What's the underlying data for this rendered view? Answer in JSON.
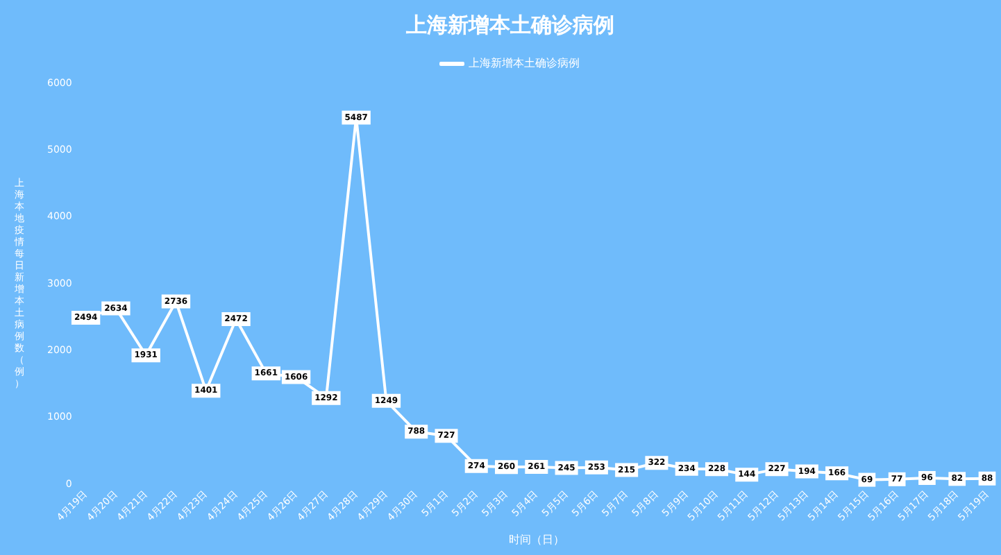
{
  "chart_data": {
    "type": "line",
    "title": "上海新增本土确诊病例",
    "xlabel": "时间（日）",
    "ylabel": "上海本地疫情每日新增本土病例数（例）",
    "categories": [
      "4月19日",
      "4月20日",
      "4月21日",
      "4月22日",
      "4月23日",
      "4月24日",
      "4月25日",
      "4月26日",
      "4月27日",
      "4月28日",
      "4月29日",
      "4月30日",
      "5月1日",
      "5月2日",
      "5月3日",
      "5月4日",
      "5月5日",
      "5月6日",
      "5月7日",
      "5月8日",
      "5月9日",
      "5月10日",
      "5月11日",
      "5月12日",
      "5月13日",
      "5月14日",
      "5月15日",
      "5月16日",
      "5月17日",
      "5月18日",
      "5月19日"
    ],
    "series": [
      {
        "name": "上海新增本土确诊病例",
        "color": "#ffffff",
        "values": [
          2494,
          2634,
          1931,
          2736,
          1401,
          2472,
          1661,
          1606,
          1292,
          5487,
          1249,
          788,
          727,
          274,
          260,
          261,
          245,
          253,
          215,
          322,
          234,
          228,
          144,
          227,
          194,
          166,
          69,
          77,
          96,
          82,
          88
        ]
      }
    ],
    "ylim": [
      0,
      6000
    ],
    "yticks": [
      0,
      1000,
      2000,
      3000,
      4000,
      5000,
      6000
    ],
    "grid": false,
    "legend": "top",
    "marker": "square",
    "data_labels": true
  }
}
